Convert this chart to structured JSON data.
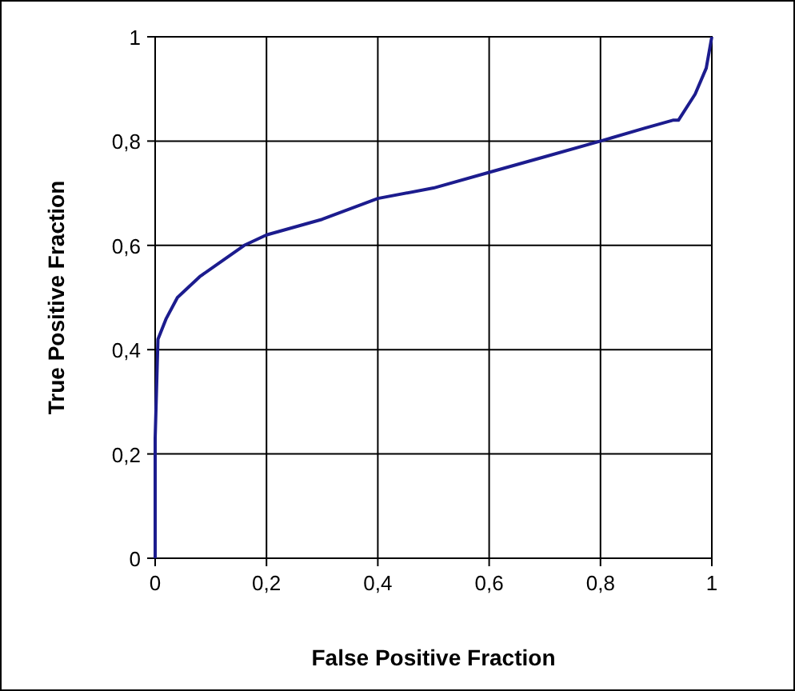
{
  "chart_data": {
    "type": "line",
    "xlabel": "False Positive Fraction",
    "ylabel": "True Positive Fraction",
    "x": [
      0,
      0,
      0.005,
      0.02,
      0.04,
      0.08,
      0.12,
      0.16,
      0.2,
      0.3,
      0.4,
      0.5,
      0.6,
      0.7,
      0.8,
      0.88,
      0.93,
      0.94,
      0.97,
      0.99,
      1
    ],
    "series": [
      {
        "color": "#1c1c8e",
        "values": [
          0,
          0.23,
          0.42,
          0.46,
          0.5,
          0.54,
          0.57,
          0.6,
          0.62,
          0.65,
          0.69,
          0.71,
          0.74,
          0.77,
          0.8,
          0.825,
          0.84,
          0.84,
          0.89,
          0.94,
          1
        ]
      }
    ],
    "xlim": [
      0,
      1
    ],
    "ylim": [
      0,
      1
    ],
    "xticks": [
      0,
      {
        "value": 0.2,
        "label": "0,2"
      },
      {
        "value": 0.4,
        "label": "0,4"
      },
      {
        "value": 0.6,
        "label": "0,6"
      },
      {
        "value": 0.8,
        "label": "0,8"
      },
      1
    ],
    "yticks": [
      0,
      {
        "value": 0.2,
        "label": "0,2"
      },
      {
        "value": 0.4,
        "label": "0,4"
      },
      {
        "value": 0.6,
        "label": "0,6"
      },
      {
        "value": 0.8,
        "label": "0,8"
      },
      1
    ],
    "grid": true,
    "marker": "none",
    "line_style": "solid"
  }
}
